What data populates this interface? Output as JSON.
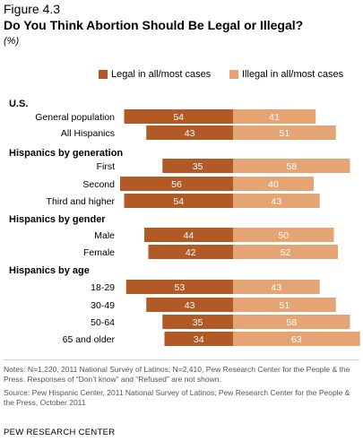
{
  "figure_label": "Figure 4.3",
  "title": "Do You Think Abortion Should Be Legal or Illegal?",
  "subtitle": "(%)",
  "colors": {
    "legal": "#b25a26",
    "illegal": "#e5a474",
    "label_text": "#ffffff"
  },
  "chart_data": {
    "type": "bar",
    "orientation": "horizontal-diverging",
    "legend": [
      "Legal in all/most cases",
      "Illegal in all/most cases"
    ],
    "legend_position": "top-right",
    "groups": [
      {
        "heading": "U.S.",
        "rows": [
          {
            "label": "General population",
            "legal": 54,
            "illegal": 41
          },
          {
            "label": "All Hispanics",
            "legal": 43,
            "illegal": 51
          }
        ]
      },
      {
        "heading": "Hispanics by generation",
        "rows": [
          {
            "label": "First",
            "legal": 35,
            "illegal": 58
          },
          {
            "label": "Second",
            "legal": 56,
            "illegal": 40
          },
          {
            "label": "Third and higher",
            "legal": 54,
            "illegal": 43
          }
        ]
      },
      {
        "heading": "Hispanics by gender",
        "rows": [
          {
            "label": "Male",
            "legal": 44,
            "illegal": 50
          },
          {
            "label": "Female",
            "legal": 42,
            "illegal": 52
          }
        ]
      },
      {
        "heading": "Hispanics by age",
        "rows": [
          {
            "label": "18-29",
            "legal": 53,
            "illegal": 43
          },
          {
            "label": "30-49",
            "legal": 43,
            "illegal": 51
          },
          {
            "label": "50-64",
            "legal": 35,
            "illegal": 58
          },
          {
            "label": "65 and older",
            "legal": 34,
            "illegal": 63
          }
        ]
      }
    ]
  },
  "notes": "Notes: N=1,220, 2011 National Survey of Latinos; N=2,410, Pew Research Center for the People & the Press. Responses of “Don’t know” and “Refused” are not shown.",
  "source": "Source: Pew Hispanic Center, 2011 National Survey of Latinos; Pew Research Center for the People & the Press, October 2011",
  "footer": "PEW RESEARCH CENTER"
}
